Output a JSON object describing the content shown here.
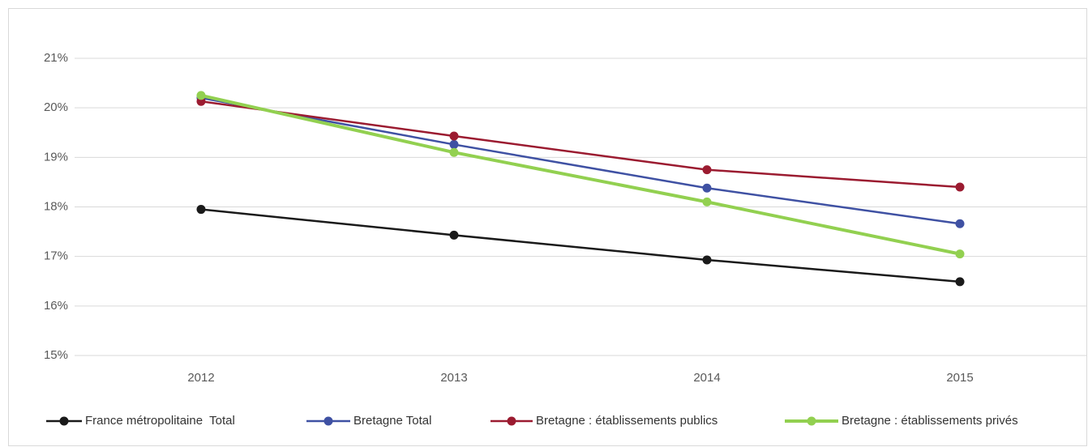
{
  "chart_data": {
    "type": "line",
    "categories": [
      "2012",
      "2013",
      "2014",
      "2015"
    ],
    "series": [
      {
        "name": "France métropolitaine  Total",
        "color": "#1a1a1a",
        "values": [
          17.95,
          17.43,
          16.93,
          16.49
        ]
      },
      {
        "name": "Bretagne Total",
        "color": "#3f51a3",
        "values": [
          20.2,
          19.26,
          18.38,
          17.66
        ]
      },
      {
        "name": "Bretagne : établissements publics",
        "color": "#9b1b30",
        "values": [
          20.13,
          19.43,
          18.75,
          18.4
        ]
      },
      {
        "name": "Bretagne : établissements privés",
        "color": "#92d050",
        "values": [
          20.25,
          19.1,
          18.1,
          17.05
        ]
      }
    ],
    "ylim": [
      15,
      21
    ],
    "yticks": [
      {
        "value": 15,
        "label": "15%"
      },
      {
        "value": 16,
        "label": "16%"
      },
      {
        "value": 17,
        "label": "17%"
      },
      {
        "value": 18,
        "label": "18%"
      },
      {
        "value": 19,
        "label": "19%"
      },
      {
        "value": 20,
        "label": "20%"
      },
      {
        "value": 21,
        "label": "21%"
      }
    ],
    "grid": true,
    "legend": "bottom"
  }
}
